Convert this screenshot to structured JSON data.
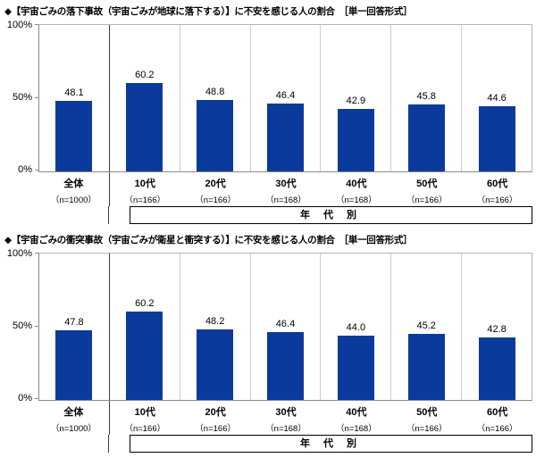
{
  "page": {
    "background": "#ffffff",
    "bar_color": "#0a3a9c",
    "separator_color": "#cccccc",
    "divider_color": "#3d3d3d"
  },
  "chart_data": [
    {
      "type": "bar",
      "title": "◆【宇宙ごみの落下事故（宇宙ごみが地球に落下する）】に不安を感じる人の割合　［単一回答形式］",
      "categories": [
        "全体",
        "10代",
        "20代",
        "30代",
        "40代",
        "50代",
        "60代"
      ],
      "n_labels": [
        "（n=1000）",
        "（n=166）",
        "（n=166）",
        "（n=168）",
        "（n=168）",
        "（n=166）",
        "（n=166）"
      ],
      "values": [
        48.1,
        60.2,
        48.8,
        46.4,
        42.9,
        45.8,
        44.6
      ],
      "value_labels": [
        "48.1",
        "60.2",
        "48.8",
        "46.4",
        "42.9",
        "45.8",
        "44.6"
      ],
      "ylim": [
        0,
        100
      ],
      "yticks": [
        "100%",
        "50%",
        "0%"
      ],
      "group_label": "年 代 別",
      "bar_color": "#0a3a9c",
      "legend": "none",
      "grid": "vertical category separators only"
    },
    {
      "type": "bar",
      "title": "◆【宇宙ごみの衝突事故（宇宙ごみが衛星と衝突する）】に不安を感じる人の割合　［単一回答形式］",
      "categories": [
        "全体",
        "10代",
        "20代",
        "30代",
        "40代",
        "50代",
        "60代"
      ],
      "n_labels": [
        "（n=1000）",
        "（n=166）",
        "（n=166）",
        "（n=168）",
        "（n=168）",
        "（n=166）",
        "（n=166）"
      ],
      "values": [
        47.8,
        60.2,
        48.2,
        46.4,
        44.0,
        45.2,
        42.8
      ],
      "value_labels": [
        "47.8",
        "60.2",
        "48.2",
        "46.4",
        "44.0",
        "45.2",
        "42.8"
      ],
      "ylim": [
        0,
        100
      ],
      "yticks": [
        "100%",
        "50%",
        "0%"
      ],
      "group_label": "年 代 別",
      "bar_color": "#0a3a9c",
      "legend": "none",
      "grid": "vertical category separators only"
    }
  ]
}
